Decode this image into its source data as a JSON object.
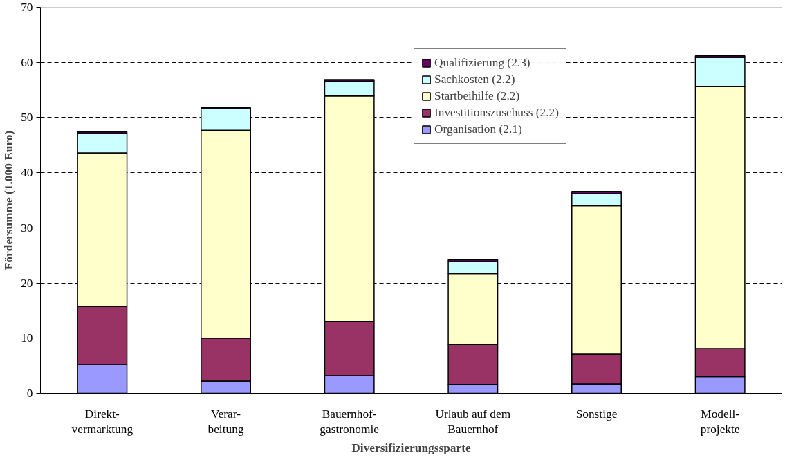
{
  "chart_data": {
    "type": "bar",
    "stacked": true,
    "xlabel": "Diversifizierungssparte",
    "ylabel": "Fördersumme (1.000 Euro)",
    "categories": [
      "Direkt-\nvermarktung",
      "Verar-\nbeitung",
      "Bauernhof-\ngastronomie",
      "Urlaub auf dem\nBauernhof",
      "Sonstige",
      "Modell-\nprojekte"
    ],
    "series": [
      {
        "name": "Organisation (2.1)",
        "color": "#9999ff",
        "values": [
          5.2,
          2.2,
          3.2,
          1.6,
          1.7,
          3.0
        ]
      },
      {
        "name": "Investitionszuschuss (2.2)",
        "color": "#993366",
        "values": [
          10.5,
          7.8,
          9.8,
          7.2,
          5.4,
          5.1
        ]
      },
      {
        "name": "Startbeihilfe (2.2)",
        "color": "#ffffcc",
        "values": [
          27.9,
          37.7,
          40.9,
          12.9,
          26.9,
          47.5
        ]
      },
      {
        "name": "Sachkosten (2.2)",
        "color": "#ccffff",
        "values": [
          3.5,
          3.9,
          2.7,
          2.2,
          2.2,
          5.3
        ]
      },
      {
        "name": "Qualifizierung (2.3)",
        "color": "#660066",
        "values": [
          0.3,
          0.2,
          0.3,
          0.3,
          0.4,
          0.3
        ]
      }
    ],
    "ylim": [
      0,
      70
    ],
    "yticks": [
      0,
      10,
      20,
      30,
      40,
      50,
      60,
      70
    ],
    "grid": "y",
    "legend": "top right"
  }
}
